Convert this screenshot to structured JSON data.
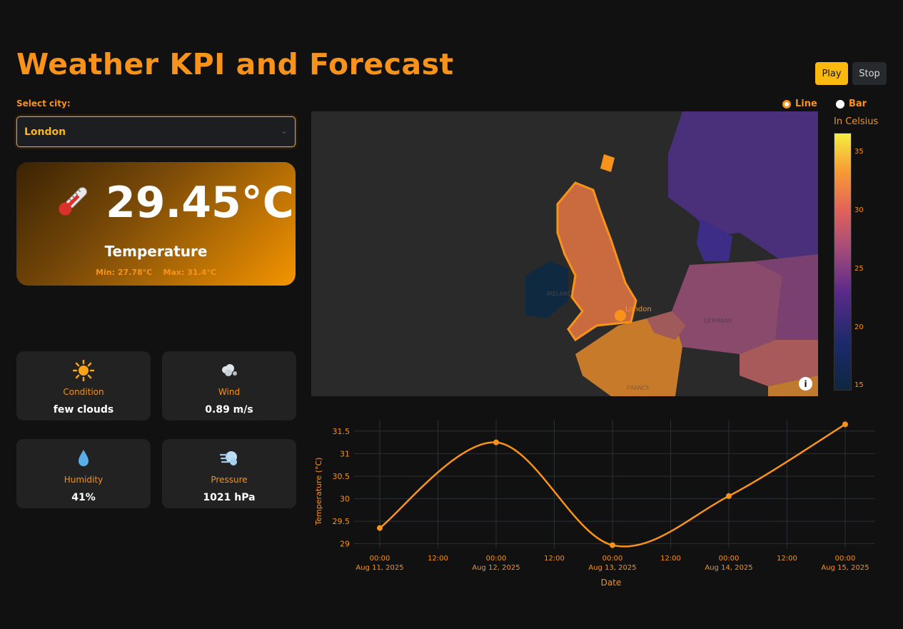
{
  "title": "Weather KPI and Forecast",
  "controls": {
    "play_label": "Play",
    "stop_label": "Stop"
  },
  "city": {
    "label": "Select city:",
    "selected": "London"
  },
  "kpi": {
    "temperature": "29.45°C",
    "label": "Temperature",
    "minmax": "Min: 27.78°C    Max: 31.4°C"
  },
  "cards": [
    {
      "icon": "sun-icon",
      "label": "Condition",
      "value": "few clouds"
    },
    {
      "icon": "wind-icon",
      "label": "Wind",
      "value": "0.89 m/s"
    },
    {
      "icon": "droplet-icon",
      "label": "Humidity",
      "value": "41%"
    },
    {
      "icon": "pressure-icon",
      "label": "Pressure",
      "value": "1021 hPa"
    }
  ],
  "chart_type_toggle": {
    "options": [
      "Line",
      "Bar"
    ],
    "selected": "Line"
  },
  "map": {
    "marker_label": "London",
    "colorbar_title": "In Celsius",
    "colorbar_ticks": [
      "35",
      "30",
      "25",
      "20",
      "15"
    ],
    "country_labels": [
      "IRELAND",
      "GERMANY",
      "FRANCE"
    ],
    "colors": {
      "uk": "#c96b3e",
      "france": "#c77a2a",
      "germany": "#8a4a6b",
      "scandinavia": "#4a2f7a",
      "ireland": "#0f2a40"
    }
  },
  "chart_data": {
    "type": "line",
    "x": [
      "2025-08-11 00:00",
      "2025-08-12 00:00",
      "2025-08-13 00:00",
      "2025-08-14 00:00",
      "2025-08-15 00:00"
    ],
    "values": [
      29.35,
      31.25,
      28.97,
      30.06,
      31.65
    ],
    "xlabel": "Date",
    "ylabel": "Temperature (°C)",
    "ylim": [
      28.9,
      31.75
    ],
    "yticks": [
      "29",
      "29.5",
      "30",
      "30.5",
      "31",
      "31.5"
    ],
    "xticks_top": [
      "00:00",
      "12:00",
      "00:00",
      "12:00",
      "00:00",
      "12:00",
      "00:00",
      "12:00",
      "00:00"
    ],
    "xticks_bottom": [
      "Aug 11, 2025",
      "",
      "Aug 12, 2025",
      "",
      "Aug 13, 2025",
      "",
      "Aug 14, 2025",
      "",
      "Aug 15, 2025"
    ],
    "grid": true,
    "color": "#f7931a"
  }
}
